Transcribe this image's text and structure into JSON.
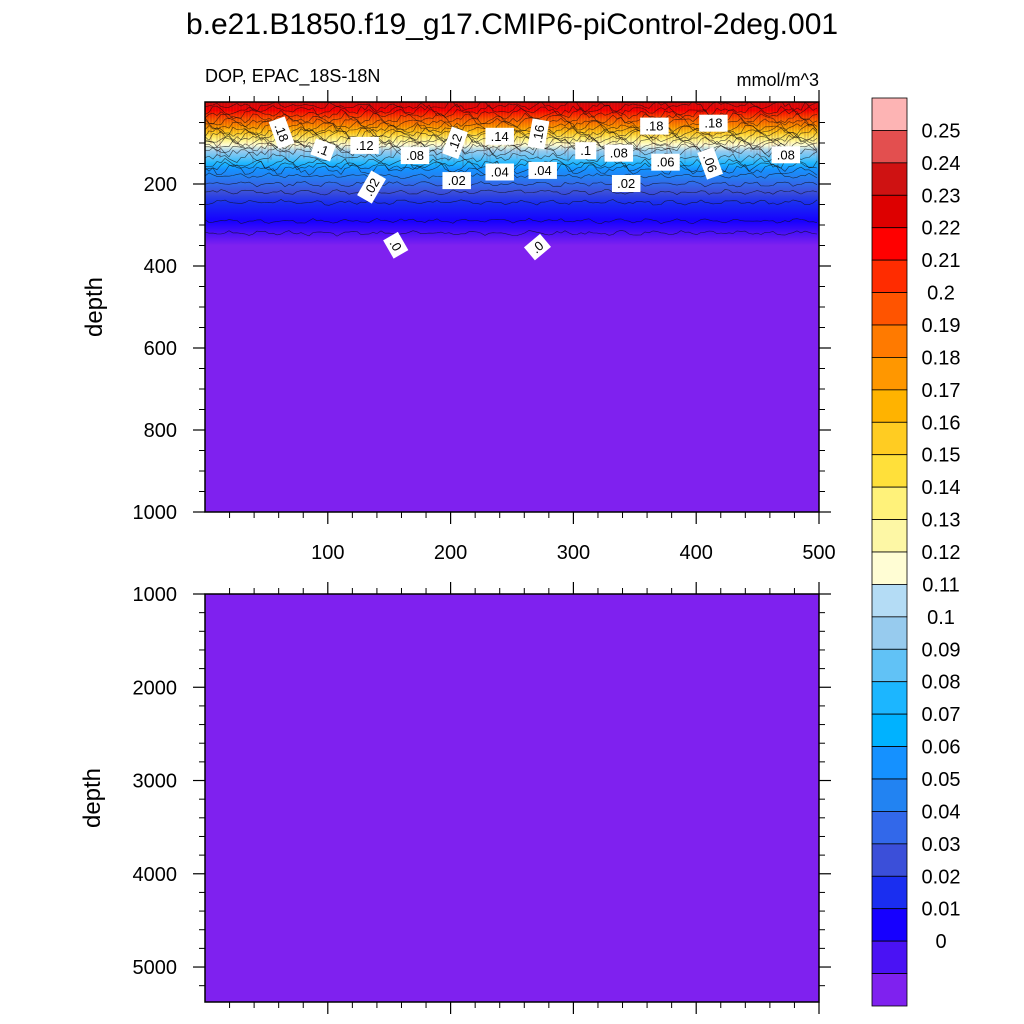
{
  "figure": {
    "title": "b.e21.B1850.f19_g17.CMIP6-piControl-2deg.001",
    "left_subtitle": "DOP, EPAC_18S-18N",
    "right_subtitle": "mmol/m^3"
  },
  "chart_data": [
    {
      "type": "heatmap",
      "panel": "upper",
      "title": "",
      "xlabel": "",
      "ylabel": "depth",
      "xlim": [
        0,
        500
      ],
      "ylim": [
        1000,
        0
      ],
      "x_ticks": [
        100,
        200,
        300,
        400,
        500
      ],
      "y_ticks": [
        200,
        400,
        600,
        800,
        1000
      ],
      "description_values": {
        "surface_value_range": [
          0.18,
          0.25
        ],
        "near_zero_depth": 350
      },
      "depth_profile": {
        "depth": [
          0,
          20,
          40,
          60,
          75,
          90,
          105,
          120,
          135,
          150,
          165,
          180,
          200,
          220,
          245,
          290,
          350,
          1000
        ],
        "value": [
          0.24,
          0.22,
          0.2,
          0.18,
          0.16,
          0.14,
          0.12,
          0.1,
          0.09,
          0.08,
          0.06,
          0.05,
          0.04,
          0.03,
          0.02,
          0.01,
          0.0,
          0.0
        ]
      },
      "contour_labels": [
        {
          "text": ".18",
          "x": 62,
          "depth": 75
        },
        {
          "text": ".1",
          "x": 96,
          "depth": 118
        },
        {
          "text": ".12",
          "x": 130,
          "depth": 107
        },
        {
          "text": ".08",
          "x": 171,
          "depth": 132
        },
        {
          "text": ".02",
          "x": 136,
          "depth": 208
        },
        {
          "text": ".12",
          "x": 204,
          "depth": 100
        },
        {
          "text": ".14",
          "x": 240,
          "depth": 85
        },
        {
          "text": ".16",
          "x": 272,
          "depth": 78
        },
        {
          "text": ".02",
          "x": 205,
          "depth": 193
        },
        {
          "text": ".04",
          "x": 240,
          "depth": 172
        },
        {
          "text": ".04",
          "x": 275,
          "depth": 168
        },
        {
          "text": ".1",
          "x": 310,
          "depth": 120
        },
        {
          "text": ".08",
          "x": 337,
          "depth": 126
        },
        {
          "text": ".02",
          "x": 343,
          "depth": 200
        },
        {
          "text": ".18",
          "x": 366,
          "depth": 60
        },
        {
          "text": ".06",
          "x": 375,
          "depth": 148
        },
        {
          "text": ".18",
          "x": 414,
          "depth": 53
        },
        {
          "text": ".06",
          "x": 411,
          "depth": 150
        },
        {
          "text": ".08",
          "x": 473,
          "depth": 130
        },
        {
          "text": ".0",
          "x": 155,
          "depth": 350
        },
        {
          "text": ".0",
          "x": 271,
          "depth": 355
        }
      ]
    },
    {
      "type": "heatmap",
      "panel": "lower",
      "title": "",
      "xlabel": "",
      "ylabel": "depth",
      "xlim": [
        0,
        500
      ],
      "ylim": [
        1000,
        5375
      ],
      "y_ticks": [
        1000,
        2000,
        3000,
        4000,
        5000
      ],
      "uniform_value": 0.0
    }
  ],
  "colorbar": {
    "labels": [
      "0.25",
      "0.24",
      "0.23",
      "0.22",
      "0.21",
      "0.2",
      "0.19",
      "0.18",
      "0.17",
      "0.16",
      "0.15",
      "0.14",
      "0.13",
      "0.12",
      "0.11",
      "0.1",
      "0.09",
      "0.08",
      "0.07",
      "0.06",
      "0.05",
      "0.04",
      "0.03",
      "0.02",
      "0.01",
      "0"
    ],
    "colors": [
      "#fdb4b4",
      "#e34f4f",
      "#cf1212",
      "#dd0000",
      "#ff0000",
      "#ff2c00",
      "#ff5400",
      "#ff7a00",
      "#ff9700",
      "#ffb300",
      "#ffcc22",
      "#ffe03a",
      "#fff27a",
      "#fdf7a5",
      "#fffdd4",
      "#b4dcf5",
      "#97cbee",
      "#61c2f6",
      "#1cb6ff",
      "#00b2ff",
      "#1591ff",
      "#2283f2",
      "#3268ea",
      "#3b4fd9",
      "#1a2ef0",
      "#1600ff",
      "#4a12f4",
      "#7f21ef"
    ]
  }
}
